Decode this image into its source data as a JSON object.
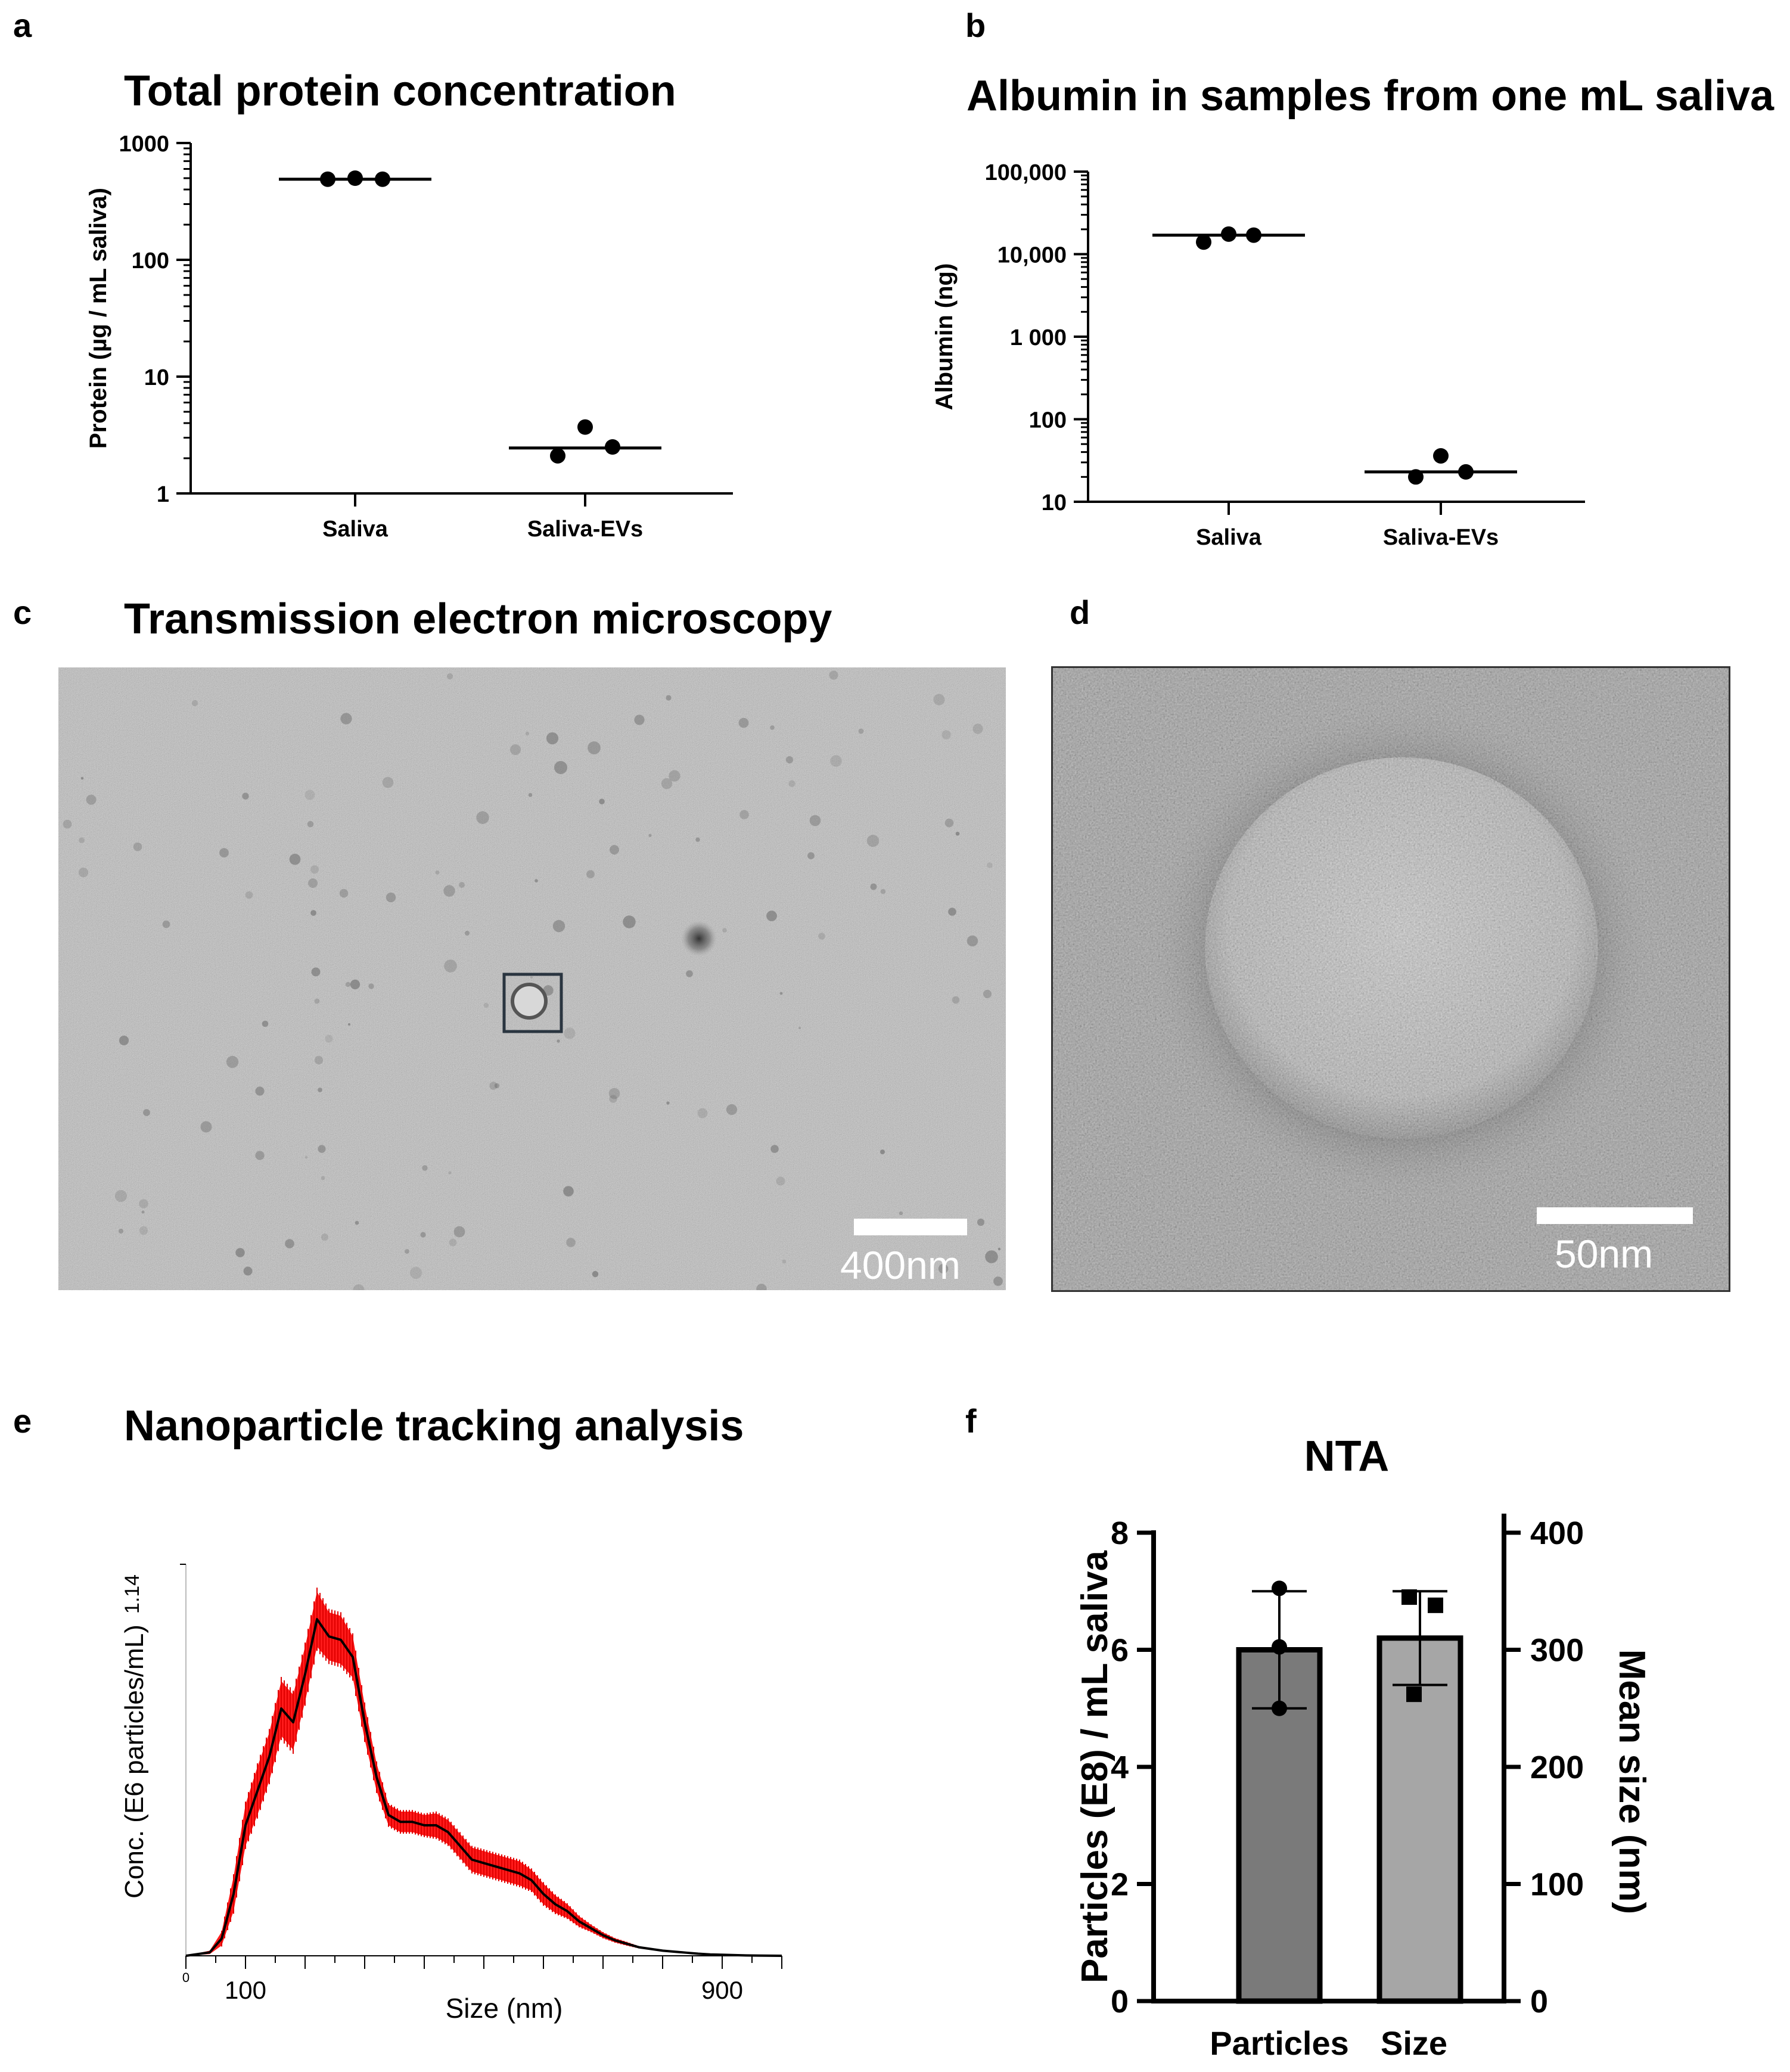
{
  "panel_labels": {
    "a": "a",
    "b": "b",
    "c": "c",
    "d": "d",
    "e": "e",
    "f": "f"
  },
  "panel_titles": {
    "a": "Total protein concentration",
    "b": "Albumin in samples from one mL saliva",
    "c": "Transmission electron microscopy",
    "e": "Nanoparticle tracking analysis"
  },
  "scale_bars": {
    "c": "400nm",
    "d": "50nm"
  },
  "colors": {
    "nta_error": "#ff1a1a",
    "nta_line": "#000000",
    "bar_particles": "#7a7a7a",
    "bar_size": "#a6a6a6"
  },
  "chart_data": [
    {
      "id": "a",
      "type": "scatter",
      "title": "Total protein concentration",
      "xlabel": "",
      "ylabel": "Protein (µg / mL saliva)",
      "yscale": "log",
      "ylim": [
        1,
        1000
      ],
      "yticks": [
        "1",
        "10",
        "100",
        "1000"
      ],
      "categories": [
        "Saliva",
        "Saliva-EVs"
      ],
      "points": [
        [
          490,
          500,
          490
        ],
        [
          2.1,
          3.7,
          2.5
        ]
      ],
      "medians": [
        490,
        2.45
      ]
    },
    {
      "id": "b",
      "type": "scatter",
      "title": "Albumin in samples from one mL saliva",
      "xlabel": "",
      "ylabel": "Albumin (ng)",
      "yscale": "log",
      "ylim": [
        10,
        100000
      ],
      "yticks": [
        "10",
        "100",
        "1 000",
        "10,000",
        "100,000"
      ],
      "categories": [
        "Saliva",
        "Saliva-EVs"
      ],
      "points": [
        [
          14000,
          17500,
          17000
        ],
        [
          20,
          36,
          23
        ]
      ],
      "medians": [
        17000,
        23
      ]
    },
    {
      "id": "e",
      "type": "line",
      "title": "Nanoparticle tracking analysis",
      "xlabel": "Size (nm)",
      "ylabel": "Conc. (E6 particles/mL)",
      "xlim": [
        0,
        1000
      ],
      "ylim": [
        0,
        1.14
      ],
      "xtick_labels": [
        "0",
        "100",
        "900"
      ],
      "ytick_labels": [
        "1.14"
      ],
      "x": [
        0,
        40,
        60,
        80,
        100,
        120,
        140,
        160,
        180,
        200,
        220,
        240,
        260,
        280,
        300,
        320,
        340,
        360,
        380,
        400,
        420,
        440,
        460,
        480,
        500,
        520,
        540,
        560,
        580,
        600,
        620,
        640,
        660,
        680,
        700,
        720,
        740,
        760,
        780,
        800,
        820,
        840,
        860,
        880,
        900,
        940,
        1000
      ],
      "y": [
        0,
        0.01,
        0.05,
        0.18,
        0.38,
        0.48,
        0.58,
        0.72,
        0.68,
        0.82,
        0.98,
        0.93,
        0.92,
        0.87,
        0.68,
        0.52,
        0.41,
        0.39,
        0.39,
        0.38,
        0.38,
        0.36,
        0.32,
        0.28,
        0.27,
        0.26,
        0.25,
        0.24,
        0.22,
        0.18,
        0.15,
        0.13,
        0.1,
        0.08,
        0.06,
        0.045,
        0.035,
        0.025,
        0.02,
        0.015,
        0.012,
        0.009,
        0.006,
        0.004,
        0.003,
        0.001,
        0
      ],
      "err": [
        0,
        0.005,
        0.02,
        0.05,
        0.06,
        0.07,
        0.07,
        0.08,
        0.08,
        0.08,
        0.08,
        0.07,
        0.07,
        0.06,
        0.05,
        0.04,
        0.03,
        0.03,
        0.03,
        0.03,
        0.035,
        0.035,
        0.035,
        0.035,
        0.035,
        0.035,
        0.035,
        0.035,
        0.03,
        0.03,
        0.025,
        0.02,
        0.015,
        0.01,
        0.008,
        0.006,
        0.005,
        0.003,
        0.002,
        0.001,
        0.001,
        0,
        0,
        0,
        0,
        0,
        0
      ]
    },
    {
      "id": "f",
      "type": "bar",
      "title": "NTA",
      "categories": [
        "Particles",
        "Size"
      ],
      "ylabel": "Particles (E8) / mL saliva",
      "y2label": "Mean size (nm)",
      "ylim": [
        0,
        8
      ],
      "y2lim": [
        0,
        400
      ],
      "yticks": [
        0,
        2,
        4,
        6,
        8
      ],
      "y2ticks": [
        0,
        100,
        200,
        300,
        400
      ],
      "series": [
        {
          "axis": "left",
          "category": "Particles",
          "mean": 6.0,
          "sd": 1.0,
          "points": [
            7.05,
            6.05,
            5.0
          ],
          "marker": "circle"
        },
        {
          "axis": "right",
          "category": "Size",
          "mean": 310,
          "sd": 40,
          "points": [
            345,
            338,
            262
          ],
          "marker": "square"
        }
      ]
    }
  ]
}
